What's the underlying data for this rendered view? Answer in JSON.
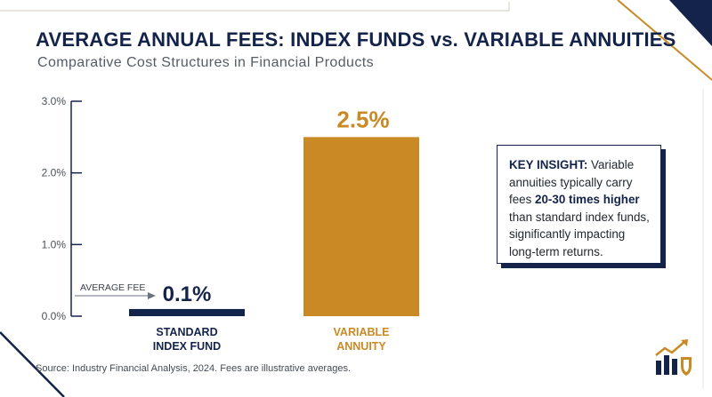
{
  "title": "AVERAGE ANNUAL FEES: INDEX FUNDS vs. VARIABLE ANNUITIES",
  "subtitle": "Comparative Cost Structures in Financial Products",
  "colors": {
    "navy": "#14234a",
    "gold": "#c98a25",
    "text": "#222831"
  },
  "chart_data": {
    "type": "bar",
    "categories": [
      "STANDARD INDEX FUND",
      "VARIABLE ANNUITY"
    ],
    "category_lines": [
      [
        "STANDARD",
        "INDEX FUND"
      ],
      [
        "VARIABLE",
        "ANNUITY"
      ]
    ],
    "values": [
      0.1,
      2.5
    ],
    "value_labels": [
      "0.1%",
      "2.5%"
    ],
    "bar_colors": [
      "#14234a",
      "#c98a25"
    ],
    "ylim": [
      0,
      3.0
    ],
    "yticks": [
      0,
      1.0,
      2.0,
      3.0
    ],
    "ytick_labels": [
      "0.0%",
      "1.0%",
      "2.0%",
      "3.0%"
    ],
    "annotation": "AVERAGE FEE",
    "grid": false,
    "legend": "none"
  },
  "insight": {
    "heading": "KEY INSIGHT:",
    "text_1": " Variable annuities typically carry fees ",
    "emphasis": "20-30 times higher",
    "text_2": " than standard index funds, significantly impacting long-term returns."
  },
  "source": "Source: Industry Financial Analysis, 2024. Fees are illustrative averages.",
  "logo_icon": "chart-shield-icon"
}
